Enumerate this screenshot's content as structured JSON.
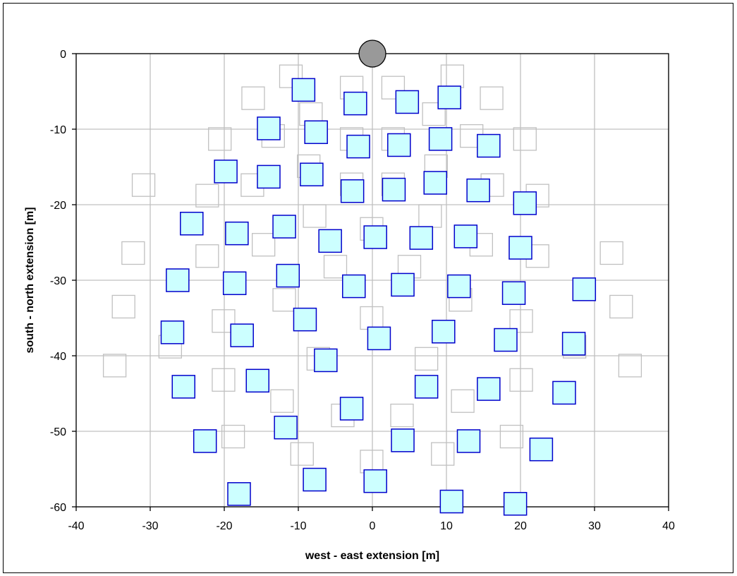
{
  "chart_data": {
    "type": "scatter",
    "xlabel": "west - east extension [m]",
    "ylabel": "south - north extension [m]",
    "xlim": [
      -40,
      40
    ],
    "ylim": [
      -60,
      0
    ],
    "xticks": [
      -40,
      -30,
      -20,
      -10,
      0,
      10,
      20,
      30,
      40
    ],
    "yticks": [
      0,
      -10,
      -20,
      -30,
      -40,
      -50,
      -60
    ],
    "grid": true,
    "legend": "none",
    "colors": {
      "grid": "#c0c0c0",
      "filled_fill": "#ccffff",
      "filled_stroke": "#0000cc",
      "outline_stroke": "#c0c0c0",
      "reference_fill": "#999999",
      "reference_stroke": "#000000"
    },
    "series": [
      {
        "marker": "filled-square",
        "points": [
          [
            -9.3,
            -4.8
          ],
          [
            -2.3,
            -6.6
          ],
          [
            4.7,
            -6.4
          ],
          [
            10.4,
            -5.8
          ],
          [
            -14,
            -9.9
          ],
          [
            -7.6,
            -10.4
          ],
          [
            -1.9,
            -12.3
          ],
          [
            3.6,
            -12.1
          ],
          [
            9.2,
            -11.3
          ],
          [
            15.7,
            -12.2
          ],
          [
            -19.8,
            -15.6
          ],
          [
            -14,
            -16.3
          ],
          [
            -8.2,
            -16
          ],
          [
            -2.7,
            -18.2
          ],
          [
            2.9,
            -18
          ],
          [
            8.5,
            -17.1
          ],
          [
            14.3,
            -18.1
          ],
          [
            20.6,
            -19.8
          ],
          [
            -24.4,
            -22.5
          ],
          [
            -18.3,
            -23.8
          ],
          [
            -11.9,
            -22.9
          ],
          [
            -5.7,
            -24.8
          ],
          [
            0.4,
            -24.3
          ],
          [
            6.6,
            -24.4
          ],
          [
            12.6,
            -24.2
          ],
          [
            20,
            -25.7
          ],
          [
            -26.3,
            -30
          ],
          [
            -18.6,
            -30.4
          ],
          [
            -11.4,
            -29.4
          ],
          [
            -2.5,
            -30.8
          ],
          [
            4.1,
            -30.6
          ],
          [
            11.7,
            -30.8
          ],
          [
            19.1,
            -31.7
          ],
          [
            28.6,
            -31.2
          ],
          [
            -27,
            -36.9
          ],
          [
            -17.6,
            -37.3
          ],
          [
            -9.1,
            -35.2
          ],
          [
            0.9,
            -37.7
          ],
          [
            9.6,
            -36.8
          ],
          [
            18,
            -37.9
          ],
          [
            27.2,
            -38.4
          ],
          [
            -25.5,
            -44.1
          ],
          [
            -15.5,
            -43.3
          ],
          [
            -6.3,
            -40.6
          ],
          [
            -2.8,
            -47
          ],
          [
            7.3,
            -44.1
          ],
          [
            15.7,
            -44.4
          ],
          [
            25.9,
            -44.9
          ],
          [
            -22.6,
            -51.3
          ],
          [
            -11.7,
            -49.5
          ],
          [
            4.1,
            -51.2
          ],
          [
            13,
            -51.3
          ],
          [
            22.8,
            -52.4
          ],
          [
            -18,
            -58.3
          ],
          [
            -7.8,
            -56.4
          ],
          [
            0.4,
            -56.6
          ],
          [
            10.7,
            -59.3
          ],
          [
            19.3,
            -59.6
          ]
        ]
      },
      {
        "marker": "outline-square",
        "points": [
          [
            -11,
            -3
          ],
          [
            -2.8,
            -4.5
          ],
          [
            2.8,
            -4.5
          ],
          [
            10.8,
            -3
          ],
          [
            -16.1,
            -5.9
          ],
          [
            -8.3,
            -8
          ],
          [
            8.3,
            -8
          ],
          [
            16.1,
            -5.9
          ],
          [
            -20.6,
            -11.3
          ],
          [
            -13.4,
            -10.9
          ],
          [
            -2.8,
            -11.3
          ],
          [
            2.8,
            -11.3
          ],
          [
            13.4,
            -10.9
          ],
          [
            20.6,
            -11.3
          ],
          [
            -30.9,
            -17.4
          ],
          [
            -22.3,
            -18.8
          ],
          [
            -16.2,
            -17.4
          ],
          [
            -8.6,
            -14.9
          ],
          [
            -2.8,
            -17.3
          ],
          [
            2.8,
            -17.3
          ],
          [
            8.6,
            -14.9
          ],
          [
            16.2,
            -17.4
          ],
          [
            22.3,
            -18.8
          ],
          [
            -32.3,
            -26.4
          ],
          [
            -22.3,
            -26.8
          ],
          [
            -14.7,
            -25.3
          ],
          [
            -7.8,
            -21.5
          ],
          [
            -0.1,
            -23.2
          ],
          [
            7.8,
            -21.5
          ],
          [
            14.7,
            -25.3
          ],
          [
            22.3,
            -26.8
          ],
          [
            32.3,
            -26.4
          ],
          [
            -33.6,
            -33.5
          ],
          [
            -11.9,
            -32.6
          ],
          [
            -5,
            -28.2
          ],
          [
            5,
            -28.2
          ],
          [
            11.9,
            -32.6
          ],
          [
            33.6,
            -33.5
          ],
          [
            -34.8,
            -41.3
          ],
          [
            -27.3,
            -38.8
          ],
          [
            -20.1,
            -35.4
          ],
          [
            -0.1,
            -35
          ],
          [
            20.1,
            -35.4
          ],
          [
            27.3,
            -38.8
          ],
          [
            34.8,
            -41.3
          ],
          [
            -20.1,
            -43.2
          ],
          [
            -12.2,
            -46
          ],
          [
            -7.3,
            -40.4
          ],
          [
            -4,
            -47.9
          ],
          [
            4,
            -47.9
          ],
          [
            7.3,
            -40.4
          ],
          [
            12.2,
            -46
          ],
          [
            20.1,
            -43.2
          ],
          [
            -18.8,
            -50.7
          ],
          [
            -9.5,
            -53
          ],
          [
            -0.1,
            -54
          ],
          [
            9.5,
            -53
          ],
          [
            18.8,
            -50.7
          ]
        ]
      },
      {
        "marker": "reference-circle",
        "points": [
          [
            0,
            0
          ]
        ]
      }
    ]
  }
}
